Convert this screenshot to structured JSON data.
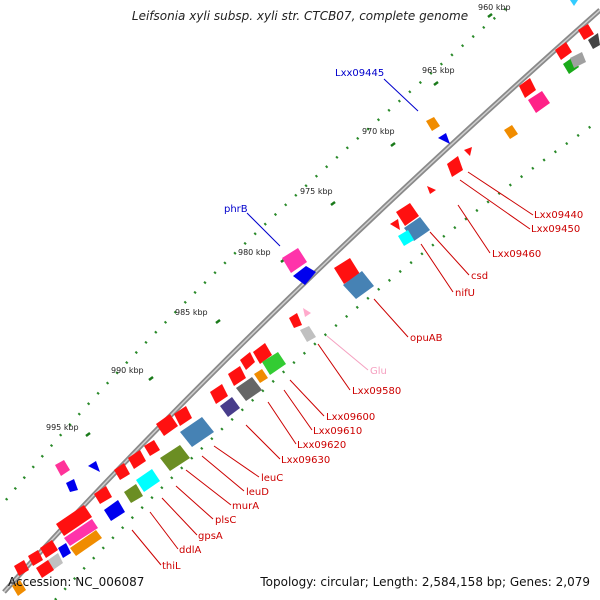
{
  "title": "Leifsonia xyli subsp. xyli str. CTCB07, complete genome",
  "footer": {
    "accession": "Accession: NC_006087",
    "summary": "Topology: circular; Length: 2,584,158 bp; Genes: 2,079"
  },
  "ticks": [
    "960 kbp",
    "965 kbp",
    "970 kbp",
    "975 kbp",
    "980 kbp",
    "985 kbp",
    "990 kbp",
    "995 kbp"
  ],
  "gene_labels": [
    {
      "text": "Lxx09445",
      "color": "#0000cc"
    },
    {
      "text": "phrB",
      "color": "#0000cc"
    },
    {
      "text": "Lxx09440",
      "color": "#cc0000"
    },
    {
      "text": "Lxx09450",
      "color": "#cc0000"
    },
    {
      "text": "Lxx09460",
      "color": "#cc0000"
    },
    {
      "text": "csd",
      "color": "#cc0000"
    },
    {
      "text": "nifU",
      "color": "#cc0000"
    },
    {
      "text": "opuAB",
      "color": "#cc0000"
    },
    {
      "text": "Glu",
      "color": "#f5a0c0"
    },
    {
      "text": "Lxx09580",
      "color": "#cc0000"
    },
    {
      "text": "Lxx09600",
      "color": "#cc0000"
    },
    {
      "text": "Lxx09610",
      "color": "#cc0000"
    },
    {
      "text": "Lxx09620",
      "color": "#cc0000"
    },
    {
      "text": "Lxx09630",
      "color": "#cc0000"
    },
    {
      "text": "leuC",
      "color": "#cc0000"
    },
    {
      "text": "leuD",
      "color": "#cc0000"
    },
    {
      "text": "murA",
      "color": "#cc0000"
    },
    {
      "text": "plsC",
      "color": "#cc0000"
    },
    {
      "text": "gpsA",
      "color": "#cc0000"
    },
    {
      "text": "ddlA",
      "color": "#cc0000"
    },
    {
      "text": "thiL",
      "color": "#cc0000"
    }
  ]
}
